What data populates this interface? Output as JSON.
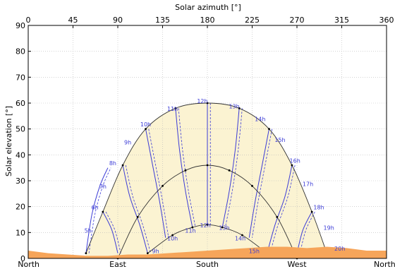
{
  "chart_data": {
    "type": "line",
    "title": "",
    "top_xlabel": "Solar azimuth [°]",
    "ylabel": "Solar elevation [°]",
    "xlim": [
      0,
      360
    ],
    "ylim": [
      0,
      90
    ],
    "top_ticks": [
      "0",
      "45",
      "90",
      "135",
      "180",
      "225",
      "270",
      "315",
      "360"
    ],
    "y_ticks": [
      "0",
      "10",
      "20",
      "30",
      "40",
      "50",
      "60",
      "70",
      "80",
      "90"
    ],
    "bottom_ticks": [
      {
        "label": "North",
        "az": 0
      },
      {
        "label": "East",
        "az": 90
      },
      {
        "label": "South",
        "az": 180
      },
      {
        "label": "West",
        "az": 270
      },
      {
        "label": "North",
        "az": 360
      }
    ],
    "grid": true,
    "colors": {
      "envelope_fill": "#fbf3d2",
      "horizon_fill": "#f6a55a",
      "hour_lines": "#3b3bd6",
      "day_paths": "#333333"
    },
    "day_paths": [
      {
        "points": [
          [
            58,
            2
          ],
          [
            75,
            18
          ],
          [
            95,
            36
          ],
          [
            118,
            50
          ],
          [
            148,
            58
          ],
          [
            180,
            60
          ],
          [
            212,
            58
          ],
          [
            242,
            50
          ],
          [
            265,
            36
          ],
          [
            285,
            18
          ],
          [
            300,
            2
          ]
        ]
      },
      {
        "points": [
          [
            90,
            0
          ],
          [
            110,
            16
          ],
          [
            135,
            28
          ],
          [
            158,
            34
          ],
          [
            180,
            36
          ],
          [
            202,
            34
          ],
          [
            225,
            28
          ],
          [
            250,
            16
          ],
          [
            270,
            0
          ]
        ]
      },
      {
        "points": [
          [
            120,
            2
          ],
          [
            145,
            9
          ],
          [
            165,
            12
          ],
          [
            180,
            13
          ],
          [
            195,
            12
          ],
          [
            215,
            9
          ],
          [
            240,
            2
          ]
        ]
      }
    ],
    "hour_labels": [
      {
        "text": "5h",
        "az": 60,
        "el": 10
      },
      {
        "text": "6h",
        "az": 67,
        "el": 19
      },
      {
        "text": "7h",
        "az": 75,
        "el": 27
      },
      {
        "text": "8h",
        "az": 85,
        "el": 36
      },
      {
        "text": "9h",
        "az": 100,
        "el": 44
      },
      {
        "text": "10h",
        "az": 118,
        "el": 51
      },
      {
        "text": "11h",
        "az": 145,
        "el": 57
      },
      {
        "text": "12h",
        "az": 175,
        "el": 60
      },
      {
        "text": "13h",
        "az": 207,
        "el": 58
      },
      {
        "text": "14h",
        "az": 233,
        "el": 53
      },
      {
        "text": "15h",
        "az": 253,
        "el": 45
      },
      {
        "text": "16h",
        "az": 268,
        "el": 37
      },
      {
        "text": "17h",
        "az": 281,
        "el": 28
      },
      {
        "text": "18h",
        "az": 292,
        "el": 19
      },
      {
        "text": "19h",
        "az": 302,
        "el": 11
      },
      {
        "text": "20h",
        "az": 313,
        "el": 3
      },
      {
        "text": "9h",
        "az": 128,
        "el": 2
      },
      {
        "text": "10h",
        "az": 145,
        "el": 7
      },
      {
        "text": "11h",
        "az": 163,
        "el": 10
      },
      {
        "text": "12h",
        "az": 178,
        "el": 12
      },
      {
        "text": "13h",
        "az": 197,
        "el": 11
      },
      {
        "text": "14h",
        "az": 213,
        "el": 7
      },
      {
        "text": "15h",
        "az": 227,
        "el": 2
      }
    ],
    "hour_line_pairs": [
      [
        [
          58,
          2
        ],
        [
          64,
          17
        ],
        [
          72,
          28
        ],
        [
          80,
          35
        ]
      ],
      [
        [
          75,
          18
        ],
        [
          84,
          11
        ],
        [
          90,
          2
        ]
      ],
      [
        [
          95,
          36
        ],
        [
          102,
          24
        ],
        [
          112,
          13
        ],
        [
          120,
          2
        ]
      ],
      [
        [
          118,
          50
        ],
        [
          125,
          36
        ],
        [
          132,
          22
        ],
        [
          138,
          8
        ]
      ],
      [
        [
          148,
          58
        ],
        [
          152,
          42
        ],
        [
          158,
          26
        ],
        [
          165,
          12
        ]
      ],
      [
        [
          180,
          60
        ],
        [
          180,
          36
        ],
        [
          180,
          13
        ]
      ],
      [
        [
          212,
          58
        ],
        [
          208,
          42
        ],
        [
          202,
          26
        ],
        [
          195,
          12
        ]
      ],
      [
        [
          242,
          50
        ],
        [
          235,
          36
        ],
        [
          228,
          22
        ],
        [
          222,
          8
        ]
      ],
      [
        [
          265,
          36
        ],
        [
          258,
          24
        ],
        [
          248,
          13
        ],
        [
          240,
          2
        ]
      ],
      [
        [
          285,
          18
        ],
        [
          276,
          11
        ],
        [
          270,
          2
        ]
      ]
    ],
    "horizon": [
      [
        0,
        3
      ],
      [
        20,
        2
      ],
      [
        40,
        1.5
      ],
      [
        60,
        1
      ],
      [
        80,
        1
      ],
      [
        100,
        1.5
      ],
      [
        120,
        1.5
      ],
      [
        140,
        2
      ],
      [
        160,
        2.5
      ],
      [
        180,
        3
      ],
      [
        200,
        3.5
      ],
      [
        220,
        4
      ],
      [
        240,
        4.5
      ],
      [
        260,
        4.5
      ],
      [
        280,
        4
      ],
      [
        300,
        4.5
      ],
      [
        320,
        4
      ],
      [
        340,
        3
      ],
      [
        360,
        3
      ]
    ]
  }
}
